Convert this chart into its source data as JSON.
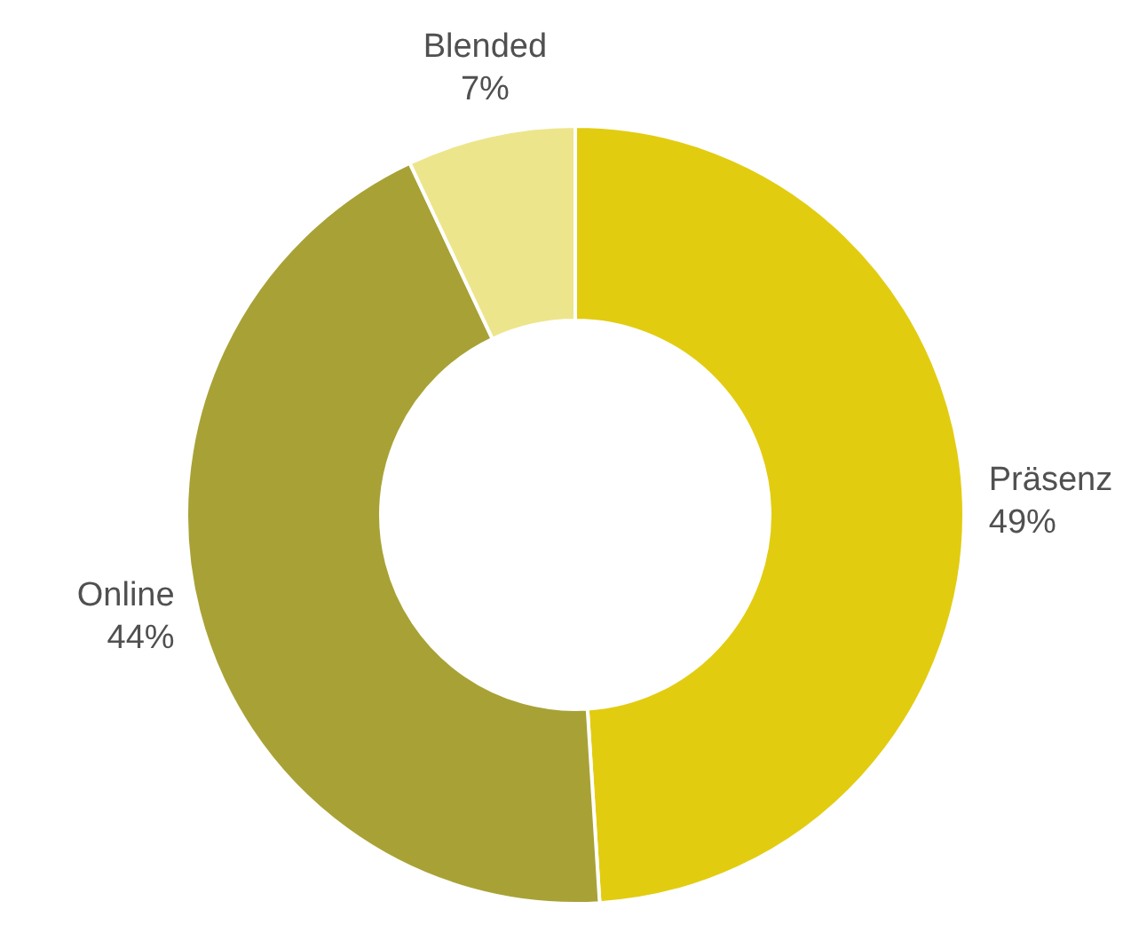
{
  "chart_data": {
    "type": "donut",
    "categories": [
      "Präsenz",
      "Online",
      "Blended"
    ],
    "values": [
      49,
      44,
      7
    ],
    "colors": [
      "#e2cc10",
      "#a8a236",
      "#ede58b"
    ],
    "value_labels": [
      "49%",
      "44%",
      "7%"
    ],
    "legend": false
  }
}
